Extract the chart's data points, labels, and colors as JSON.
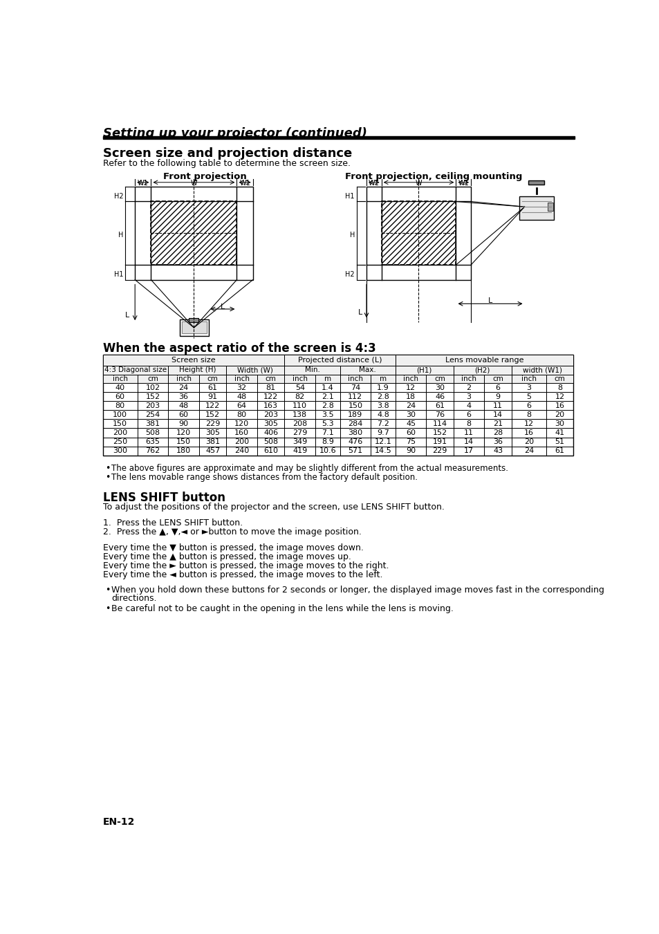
{
  "page_title": "Setting up your projector (continued)",
  "section1_title": "Screen size and projection distance",
  "section1_subtitle": "Refer to the following table to determine the screen size.",
  "diagram_left_title": "Front projection",
  "diagram_right_title": "Front projection, ceiling mounting",
  "table_section_title": "When the aspect ratio of the screen is 4:3",
  "table_data": [
    [
      "40",
      "102",
      "24",
      "61",
      "32",
      "81",
      "54",
      "1.4",
      "74",
      "1.9",
      "12",
      "30",
      "2",
      "6",
      "3",
      "8"
    ],
    [
      "60",
      "152",
      "36",
      "91",
      "48",
      "122",
      "82",
      "2.1",
      "112",
      "2.8",
      "18",
      "46",
      "3",
      "9",
      "5",
      "12"
    ],
    [
      "80",
      "203",
      "48",
      "122",
      "64",
      "163",
      "110",
      "2.8",
      "150",
      "3.8",
      "24",
      "61",
      "4",
      "11",
      "6",
      "16"
    ],
    [
      "100",
      "254",
      "60",
      "152",
      "80",
      "203",
      "138",
      "3.5",
      "189",
      "4.8",
      "30",
      "76",
      "6",
      "14",
      "8",
      "20"
    ],
    [
      "150",
      "381",
      "90",
      "229",
      "120",
      "305",
      "208",
      "5.3",
      "284",
      "7.2",
      "45",
      "114",
      "8",
      "21",
      "12",
      "30"
    ],
    [
      "200",
      "508",
      "120",
      "305",
      "160",
      "406",
      "279",
      "7.1",
      "380",
      "9.7",
      "60",
      "152",
      "11",
      "28",
      "16",
      "41"
    ],
    [
      "250",
      "635",
      "150",
      "381",
      "200",
      "508",
      "349",
      "8.9",
      "476",
      "12.1",
      "75",
      "191",
      "14",
      "36",
      "20",
      "51"
    ],
    [
      "300",
      "762",
      "180",
      "457",
      "240",
      "610",
      "419",
      "10.6",
      "571",
      "14.5",
      "90",
      "229",
      "17",
      "43",
      "24",
      "61"
    ]
  ],
  "bullet1": "The above figures are approximate and may be slightly different from the actual measurements.",
  "bullet2": "The lens movable range shows distances from the factory default position.",
  "section2_title": "LENS SHIFT button",
  "section2_intro": "To adjust the positions of the projector and the screen, use LENS SHIFT button.",
  "step1": "Press the LENS SHIFT button.",
  "step2": "Press the ▲, ▼,◄ or ►button to move the image position.",
  "line1": "Every time the ▼ button is pressed, the image moves down.",
  "line2": "Every time the ▲ button is pressed, the image moves up.",
  "line3": "Every time the ► button is pressed, the image moves to the right.",
  "line4": "Every time the ◄ button is pressed, the image moves to the left.",
  "bullet3_line1": "When you hold down these buttons for 2 seconds or longer, the displayed image moves fast in the corresponding",
  "bullet3_line2": "directions.",
  "bullet4": "Be careful not to be caught in the opening in the lens while the lens is moving.",
  "footer": "EN-12",
  "bg_color": "#ffffff"
}
